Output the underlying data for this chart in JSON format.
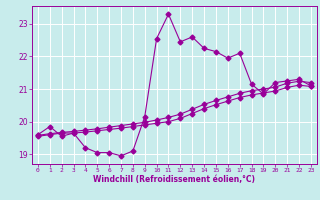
{
  "xlabel": "Windchill (Refroidissement éolien,°C)",
  "bg_color": "#c8ecec",
  "line_color": "#990099",
  "grid_color": "#ffffff",
  "xlim": [
    -0.5,
    23.5
  ],
  "ylim": [
    18.7,
    23.55
  ],
  "yticks": [
    19,
    20,
    21,
    22,
    23
  ],
  "xticks": [
    0,
    1,
    2,
    3,
    4,
    5,
    6,
    7,
    8,
    9,
    10,
    11,
    12,
    13,
    14,
    15,
    16,
    17,
    18,
    19,
    20,
    21,
    22,
    23
  ],
  "series1_x": [
    0,
    1,
    2,
    3,
    4,
    5,
    6,
    7,
    8,
    9,
    10,
    11,
    12,
    13,
    14,
    15,
    16,
    17,
    18,
    19,
    20,
    21,
    22,
    23
  ],
  "series1_y": [
    19.6,
    19.85,
    19.55,
    19.65,
    19.2,
    19.05,
    19.05,
    18.95,
    19.1,
    20.15,
    22.55,
    23.3,
    22.45,
    22.6,
    22.25,
    22.15,
    21.95,
    22.1,
    21.15,
    20.85,
    21.2,
    21.25,
    21.3,
    21.1
  ],
  "series2_x": [
    0,
    1,
    2,
    3,
    4,
    5,
    6,
    7,
    8,
    9,
    10,
    11,
    12,
    13,
    14,
    15,
    16,
    17,
    18,
    19,
    20,
    21,
    22,
    23
  ],
  "series2_y": [
    19.55,
    19.6,
    19.65,
    19.65,
    19.68,
    19.72,
    19.76,
    19.8,
    19.85,
    19.9,
    19.95,
    20.0,
    20.1,
    20.25,
    20.4,
    20.52,
    20.63,
    20.74,
    20.82,
    20.88,
    20.94,
    21.05,
    21.12,
    21.08
  ],
  "series3_x": [
    0,
    1,
    2,
    3,
    4,
    5,
    6,
    7,
    8,
    9,
    10,
    11,
    12,
    13,
    14,
    15,
    16,
    17,
    18,
    19,
    20,
    21,
    22,
    23
  ],
  "series3_y": [
    19.58,
    19.63,
    19.67,
    19.7,
    19.74,
    19.78,
    19.83,
    19.88,
    19.93,
    19.98,
    20.05,
    20.13,
    20.23,
    20.38,
    20.53,
    20.65,
    20.76,
    20.87,
    20.95,
    21.0,
    21.06,
    21.18,
    21.24,
    21.2
  ],
  "markersize": 2.5,
  "linewidth": 0.8
}
